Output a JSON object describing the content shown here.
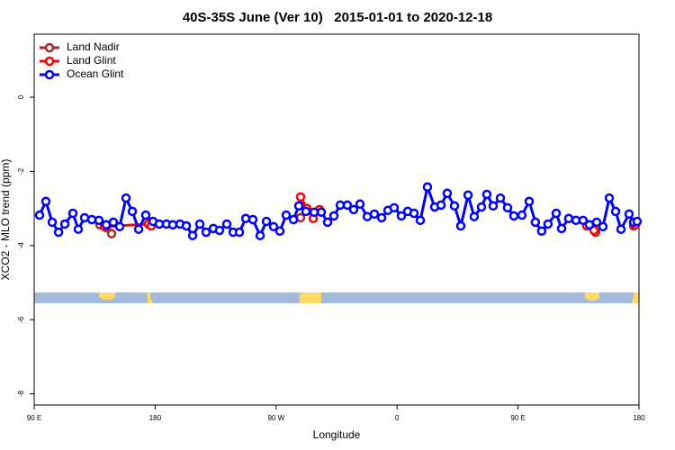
{
  "chart_data": {
    "type": "line",
    "title": "40S-35S June (Ver 10)   2015-01-01 to 2020-12-18",
    "xlabel": "Longitude",
    "ylabel": "XCO2 - MLO trend (ppm)",
    "xlim": [
      90,
      540
    ],
    "ylim": [
      -8.3,
      1.7
    ],
    "xticks": [
      {
        "value": 90,
        "label": "90 E"
      },
      180,
      {
        "value": 270,
        "label": "90 W"
      },
      {
        "value": 360,
        "label": "0"
      },
      {
        "value": 450,
        "label": "90 E"
      },
      {
        "value": 540,
        "label": "180"
      }
    ],
    "yticks": [
      0,
      -2,
      -4,
      -6,
      -8
    ],
    "legend": "top-left",
    "series": [
      {
        "name": "Land Nadir",
        "color": "#a52a2a",
        "x": [
          138.9,
          143.6,
          147.6,
          null,
          288.2,
          null,
          503.1,
          507.8,
          null,
          536.0
        ],
        "values": [
          -3.44,
          -3.52,
          -3.68,
          null,
          -3.25,
          null,
          -3.44,
          -3.64,
          null,
          -3.47
        ]
      },
      {
        "name": "Land Glint",
        "color": "#ff0000",
        "x": [
          142.2,
          175.0,
          177.1,
          null,
          288.2,
          292.9,
          297.6,
          302.3,
          null,
          501.1,
          506.5,
          null,
          537.3
        ],
        "values": [
          -3.49,
          -3.42,
          -3.47,
          null,
          -2.69,
          -3.0,
          -3.27,
          -3.03,
          null,
          -3.47,
          -3.59,
          null,
          -3.44
        ]
      },
      {
        "name": "Ocean Glint",
        "color": "#0000ff",
        "x": [
          94.0,
          98.7,
          103.4,
          108.1,
          112.8,
          118.8,
          122.8,
          127.5,
          132.9,
          138.2,
          143.6,
          148.9,
          153.6,
          158.3,
          163.0,
          167.7,
          173.0,
          178.4,
          183.1,
          188.4,
          193.1,
          198.5,
          203.2,
          207.9,
          213.2,
          217.9,
          223.3,
          227.9,
          233.3,
          238.0,
          242.7,
          247.4,
          252.7,
          258.1,
          262.8,
          268.1,
          272.8,
          277.5,
          282.9,
          286.9,
          292.2,
          298.3,
          303.6,
          308.3,
          313.0,
          317.7,
          323.0,
          327.7,
          332.4,
          337.8,
          343.1,
          348.5,
          353.2,
          357.8,
          363.2,
          367.9,
          372.6,
          377.3,
          382.6,
          388.0,
          392.7,
          397.3,
          402.7,
          407.4,
          412.8,
          417.4,
          422.8,
          426.8,
          431.5,
          436.9,
          442.2,
          446.9,
          452.9,
          458.3,
          462.9,
          467.6,
          472.3,
          478.4,
          482.4,
          487.7,
          493.1,
          498.4,
          503.1,
          508.5,
          513.2,
          517.9,
          522.6,
          526.6,
          532.6,
          536.0,
          538.6
        ],
        "values": [
          -3.18,
          -2.81,
          -3.37,
          -3.64,
          -3.42,
          -3.13,
          -3.56,
          -3.25,
          -3.3,
          -3.32,
          -3.44,
          -3.37,
          -3.49,
          -2.72,
          -3.08,
          -3.56,
          -3.18,
          -3.35,
          -3.42,
          -3.42,
          -3.44,
          -3.42,
          -3.47,
          -3.73,
          -3.42,
          -3.64,
          -3.54,
          -3.59,
          -3.42,
          -3.64,
          -3.64,
          -3.27,
          -3.3,
          -3.73,
          -3.35,
          -3.49,
          -3.61,
          -3.18,
          -3.3,
          -2.93,
          -3.08,
          -3.1,
          -3.1,
          -3.37,
          -3.2,
          -2.91,
          -2.91,
          -3.03,
          -2.88,
          -3.22,
          -3.15,
          -3.25,
          -3.05,
          -2.98,
          -3.2,
          -3.08,
          -3.13,
          -3.32,
          -2.42,
          -2.96,
          -2.91,
          -2.59,
          -2.93,
          -3.47,
          -2.64,
          -3.22,
          -2.96,
          -2.62,
          -2.93,
          -2.72,
          -2.98,
          -3.2,
          -3.18,
          -2.81,
          -3.37,
          -3.61,
          -3.42,
          -3.13,
          -3.54,
          -3.27,
          -3.32,
          -3.32,
          -3.44,
          -3.37,
          -3.49,
          -2.72,
          -3.08,
          -3.56,
          -3.15,
          -3.37,
          -3.35
        ]
      }
    ]
  }
}
